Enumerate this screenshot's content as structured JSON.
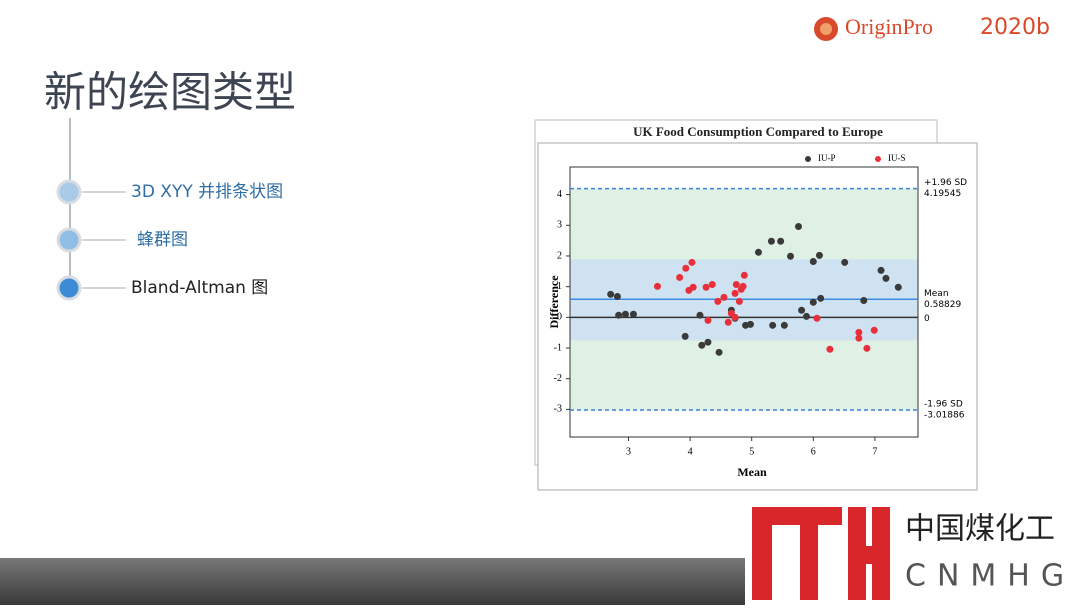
{
  "slide": {
    "title": "新的绘图类型",
    "logo": {
      "brand": "OriginPro",
      "version": "2020b"
    },
    "items": [
      "3D XYY 并排条状图",
      "蜂群图",
      "Bland-Altman 图"
    ],
    "footer": {
      "cn": "中国煤化工",
      "en": "CNMHG"
    }
  },
  "chart_data": {
    "type": "scatter",
    "title": "UK Food Consumption Compared to Europe",
    "x_label": "Mean",
    "y_label": "Difference",
    "xlim": [
      2.05,
      7.7
    ],
    "ylim": [
      -3.9,
      4.9
    ],
    "xticks": [
      3,
      4,
      5,
      6,
      7
    ],
    "yticks": [
      -3,
      -2,
      -1,
      0,
      1,
      2,
      3,
      4
    ],
    "legend": "top-right",
    "series": [
      {
        "name": "IU-P",
        "color": "#3a3a3a",
        "x": [
          2.71,
          2.82,
          2.84,
          2.95,
          3.08,
          3.92,
          4.16,
          4.19,
          4.29,
          4.47,
          4.67,
          4.73,
          4.9,
          4.98,
          5.11,
          5.32,
          5.47,
          5.34,
          5.53,
          5.63,
          5.76,
          5.81,
          5.89,
          6.0,
          6.1,
          6.0,
          6.12,
          6.51,
          6.82,
          7.1,
          7.18,
          7.38
        ],
        "values": [
          0.75,
          0.68,
          0.07,
          0.1,
          0.1,
          -0.62,
          0.07,
          -0.91,
          -0.81,
          -1.14,
          0.23,
          -0.03,
          -0.26,
          -0.23,
          2.12,
          2.48,
          2.48,
          -0.26,
          -0.26,
          1.99,
          2.96,
          0.23,
          0.03,
          1.82,
          2.02,
          0.49,
          0.62,
          1.79,
          0.55,
          1.53,
          1.27,
          0.98
        ]
      },
      {
        "name": "IU-S",
        "color": "#e8303a",
        "x": [
          3.47,
          3.83,
          3.93,
          4.03,
          3.98,
          4.05,
          4.26,
          4.36,
          4.29,
          4.45,
          4.55,
          4.73,
          4.75,
          4.83,
          4.67,
          4.62,
          4.8,
          4.88,
          4.86,
          4.73,
          6.06,
          6.27,
          6.74,
          6.74,
          6.87,
          6.99
        ],
        "values": [
          1.01,
          1.3,
          1.6,
          1.79,
          0.88,
          0.98,
          0.98,
          1.07,
          -0.1,
          0.52,
          0.65,
          0.78,
          1.07,
          0.91,
          0.13,
          -0.16,
          0.52,
          1.37,
          1.01,
          0,
          -0.03,
          -1.04,
          -0.49,
          -0.68,
          -1.01,
          -0.42
        ]
      }
    ],
    "reference_lines": [
      {
        "value": 4.19545,
        "label": "+1.96 SD",
        "color": "#3b7fd9",
        "dashed": true
      },
      {
        "value": 0.58829,
        "label": "Mean",
        "color": "#3b8ee0",
        "dashed": false
      },
      {
        "value": 0,
        "color": "#333333",
        "dashed": false
      },
      {
        "value": -3.01886,
        "label": "-1.96 SD",
        "color": "#3b7fd9",
        "dashed": true
      }
    ],
    "ci_band": [
      -0.75,
      1.89
    ]
  }
}
